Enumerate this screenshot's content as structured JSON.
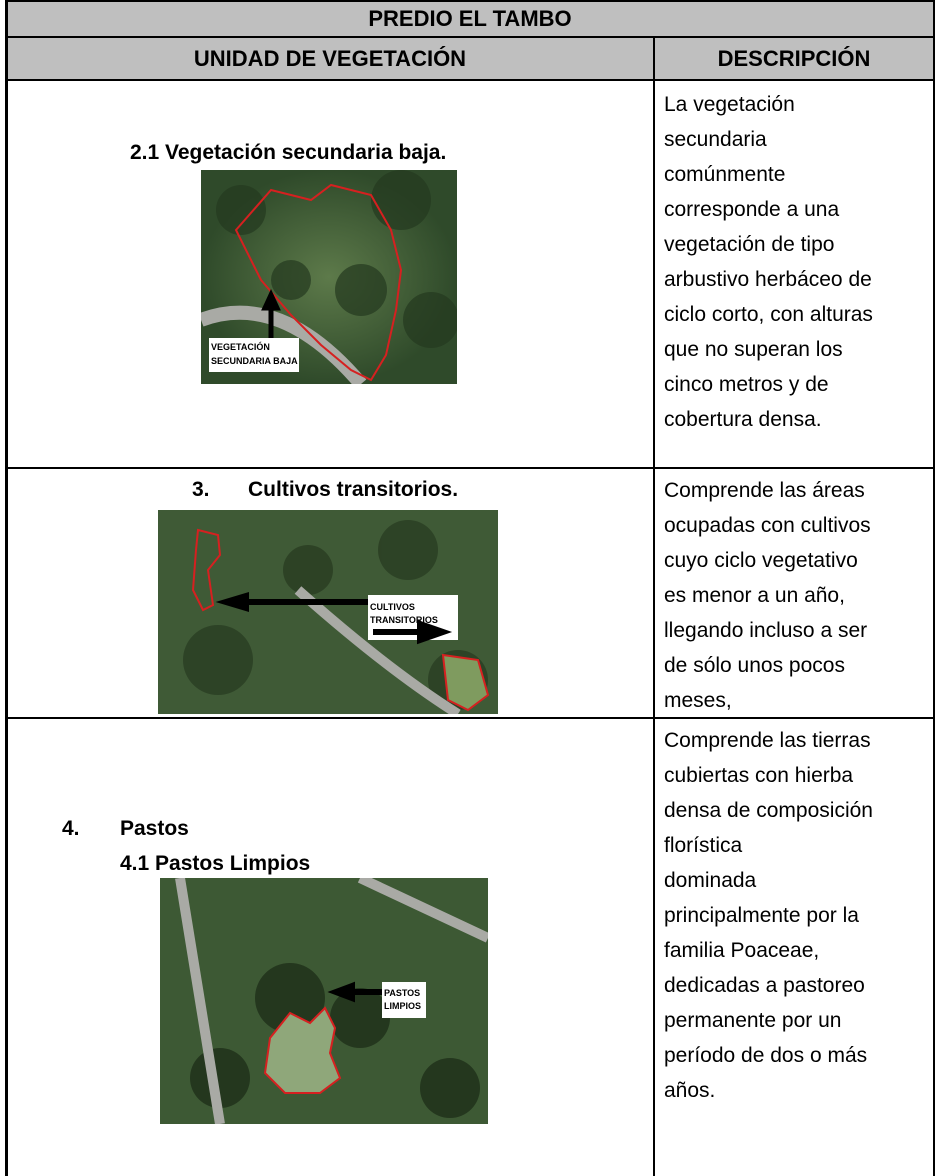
{
  "header": {
    "title": "PREDIO EL TAMBO",
    "columns": [
      "UNIDAD DE VEGETACIÓN",
      "DESCRIPCIÓN"
    ]
  },
  "rows": [
    {
      "heading": "2.1 Vegetación secundaria baja.",
      "image_label": [
        "VEGETACIÓN",
        "SECUNDARIA BAJA"
      ],
      "description": [
        "La vegetación",
        "secundaria",
        "comúnmente",
        "corresponde a una",
        "vegetación de tipo",
        "arbustivo herbáceo de",
        "ciclo corto, con alturas",
        "que no superan los",
        "cinco metros y de",
        "cobertura densa."
      ]
    },
    {
      "marker": "3.",
      "heading": "Cultivos transitorios.",
      "image_label": [
        "CULTIVOS",
        "TRANSITORIOS"
      ],
      "description": [
        "Comprende las áreas",
        "ocupadas con cultivos",
        "cuyo ciclo vegetativo",
        "es menor a un año,",
        "llegando incluso a ser",
        "de sólo unos pocos",
        "meses,"
      ]
    },
    {
      "marker": "4.",
      "heading": "Pastos",
      "subheading": "4.1 Pastos Limpios",
      "image_label": [
        "PASTOS",
        "LIMPIOS"
      ],
      "description": [
        "Comprende las tierras",
        "cubiertas con hierba",
        "densa de composición",
        "florística",
        "dominada",
        "principalmente por la",
        "familia Poaceae,",
        "dedicadas a pastoreo",
        "permanente por un",
        "período de dos o más",
        "años."
      ]
    }
  ]
}
